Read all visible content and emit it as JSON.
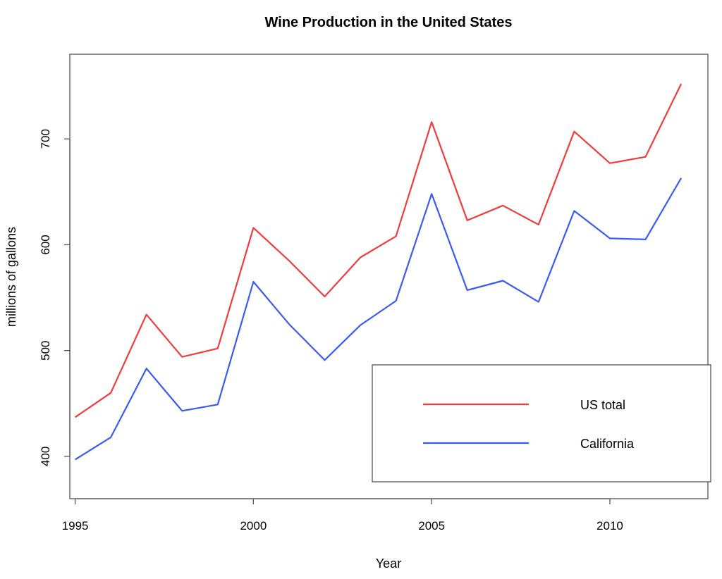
{
  "chart_data": {
    "type": "line",
    "title": "Wine Production in the United States",
    "xlabel": "Year",
    "ylabel": "millions of gallons",
    "x": [
      1995,
      1996,
      1997,
      1998,
      1999,
      2000,
      2001,
      2002,
      2003,
      2004,
      2005,
      2006,
      2007,
      2008,
      2009,
      2010,
      2011,
      2012
    ],
    "series": [
      {
        "name": "US total",
        "color": "#f03c3c",
        "values": [
          437,
          460,
          534,
          494,
          502,
          616,
          585,
          551,
          588,
          608,
          716,
          623,
          637,
          619,
          707,
          677,
          683,
          752
        ]
      },
      {
        "name": "California",
        "color": "#3c5af0",
        "values": [
          397,
          418,
          483,
          443,
          449,
          565,
          525,
          491,
          524,
          547,
          648,
          557,
          566,
          546,
          632,
          606,
          605,
          663
        ]
      }
    ],
    "xlim": [
      1994.85,
      2012.75
    ],
    "ylim": [
      360,
      780
    ],
    "x_ticks": [
      "1995",
      "2000",
      "2005",
      "2010"
    ],
    "y_ticks": [
      "400",
      "500",
      "600",
      "700"
    ],
    "legend_position": "bottom-right",
    "grid": false
  }
}
